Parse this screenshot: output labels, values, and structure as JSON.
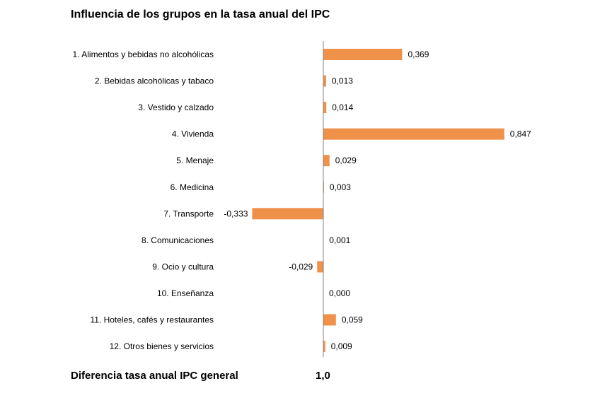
{
  "title": "Influencia de los grupos en la tasa anual del IPC",
  "chart_data": {
    "type": "bar",
    "orientation": "horizontal",
    "title": "Influencia de los grupos en la tasa anual del IPC",
    "xlabel": "",
    "ylabel": "",
    "xlim": [
      -0.4,
      1.0
    ],
    "grid": false,
    "bar_color": "#F0914A",
    "categories": [
      "1. Alimentos y bebidas no alcohólicas",
      "2. Bebidas alcohólicas y tabaco",
      "3. Vestido y calzado",
      "4. Vivienda",
      "5. Menaje",
      "6. Medicina",
      "7. Transporte",
      "8. Comunicaciones",
      "9. Ocio y cultura",
      "10. Enseñanza",
      "11. Hoteles, cafés y restaurantes",
      "12. Otros bienes y servicios"
    ],
    "values": [
      0.369,
      0.013,
      0.014,
      0.847,
      0.029,
      0.003,
      -0.333,
      0.001,
      -0.029,
      0.0,
      0.059,
      0.009
    ],
    "value_labels": [
      "0,369",
      "0,013",
      "0,014",
      "0,847",
      "0,029",
      "0,003",
      "-0,333",
      "0,001",
      "-0,029",
      "0,000",
      "0,059",
      "0,009"
    ]
  },
  "footer": {
    "label": "Diferencia tasa anual IPC general",
    "value": "1,0"
  }
}
